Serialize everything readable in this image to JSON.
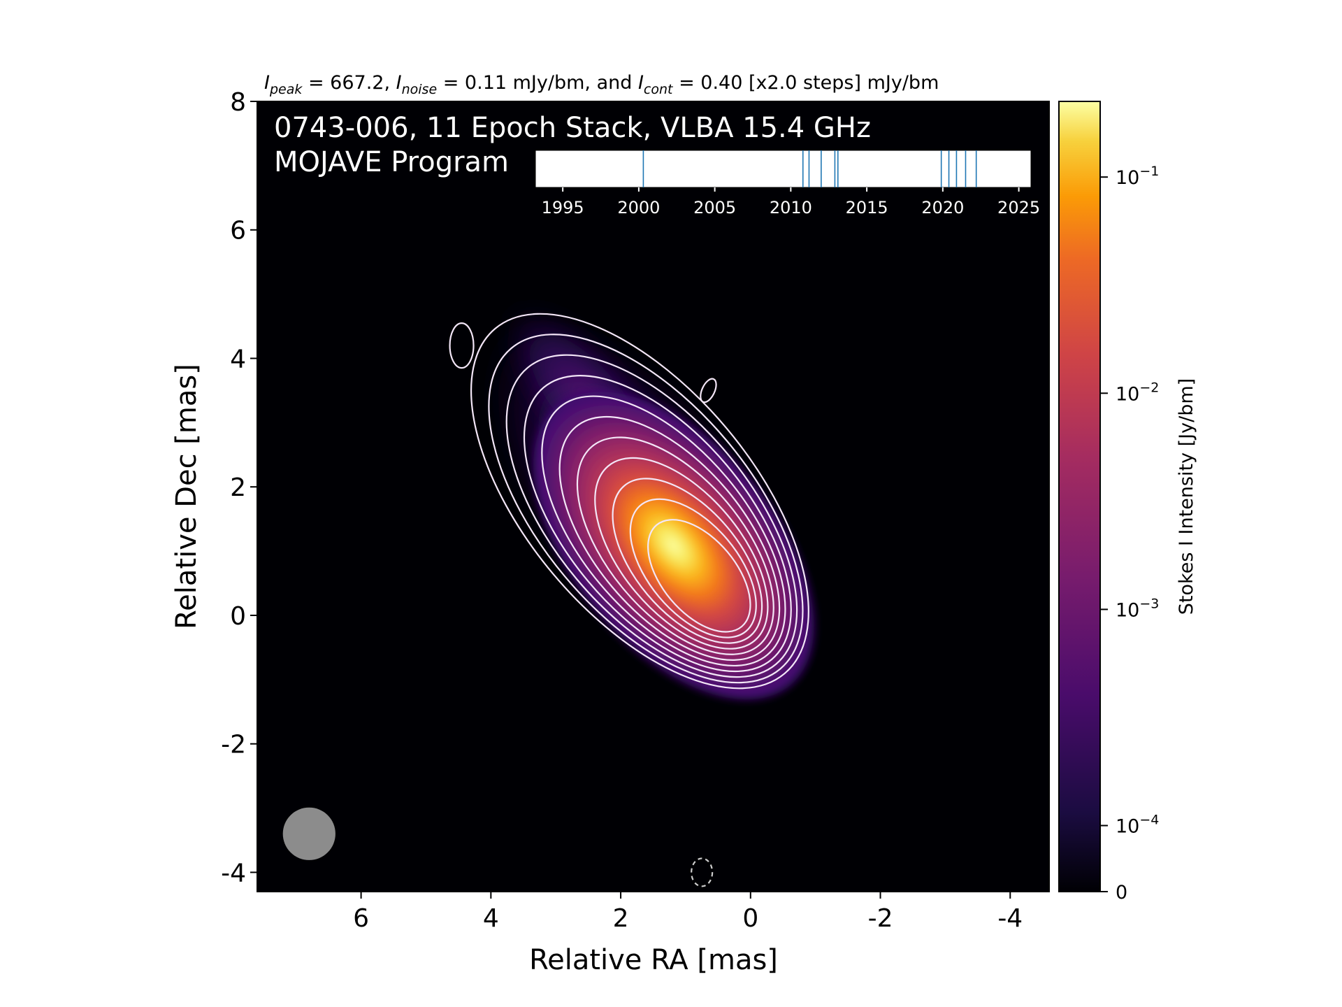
{
  "chart_data": {
    "type": "heatmap",
    "header": {
      "peak_symbol": "I",
      "peak_sub": "peak",
      "peak_text": " = 667.2, ",
      "noise_symbol": "I",
      "noise_sub": "noise",
      "noise_text": " = 0.11 mJy/bm, and ",
      "cont_symbol": "I",
      "cont_sub": "cont",
      "cont_text": " = 0.40 [x2.0 steps] mJy/bm"
    },
    "map_title_line1": "0743-006, 11 Epoch Stack, VLBA 15.4 GHz",
    "map_title_line2": "MOJAVE Program",
    "xlabel": "Relative RA [mas]",
    "ylabel": "Relative Dec [mas]",
    "xlim": [
      7.6,
      -4.6
    ],
    "ylim": [
      -4.3,
      8.0
    ],
    "x_ticks": [
      6,
      4,
      2,
      0,
      -2,
      -4
    ],
    "x_tick_labels": [
      "6",
      "4",
      "2",
      "0",
      "-2",
      "-4"
    ],
    "y_ticks": [
      8,
      6,
      4,
      2,
      0,
      -2,
      -4
    ],
    "y_tick_labels": [
      "8",
      "6",
      "4",
      "2",
      "0",
      "-2",
      "-4"
    ],
    "peak_position_mas": [
      0.7,
      0.5
    ],
    "jet_position_angle_deg": -50,
    "jet_extent_mas": [
      4.6,
      4.3
    ],
    "contour_levels_mJy": [
      0.4,
      0.8,
      1.6,
      3.2,
      6.4,
      12.8,
      25.6,
      51.2,
      102.4,
      204.8,
      409.6
    ],
    "beam": {
      "x": 6.8,
      "y": -3.4,
      "major": 0.9,
      "minor": 0.9,
      "color": "#8c8c8c"
    },
    "negative_contour": {
      "x": 0.75,
      "y": -4.0
    },
    "colorbar": {
      "label": "Stokes I Intensity [Jy/bm]",
      "scale": "log",
      "ticks": [
        {
          "value": 0.1,
          "base": "10",
          "exp": "−1"
        },
        {
          "value": 0.01,
          "base": "10",
          "exp": "−2"
        },
        {
          "value": 0.001,
          "base": "10",
          "exp": "−3"
        },
        {
          "value": 0.0001,
          "base": "10",
          "exp": "−4"
        },
        {
          "value": 0,
          "label": "0"
        }
      ],
      "colormap": "inferno"
    },
    "epoch_timeline": {
      "xlim": [
        1993.2,
        2025.8
      ],
      "ticks": [
        1995,
        2000,
        2005,
        2010,
        2015,
        2020,
        2025
      ],
      "tick_labels": [
        "1995",
        "2000",
        "2005",
        "2010",
        "2015",
        "2020",
        "2025"
      ],
      "epochs": [
        2000.3,
        2010.8,
        2011.2,
        2012.0,
        2012.9,
        2013.1,
        2019.9,
        2020.4,
        2020.9,
        2021.5,
        2022.2
      ],
      "line_color": "#1f77b4"
    }
  }
}
